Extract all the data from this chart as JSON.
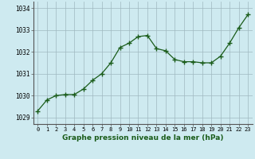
{
  "x": [
    0,
    1,
    2,
    3,
    4,
    5,
    6,
    7,
    8,
    9,
    10,
    11,
    12,
    13,
    14,
    15,
    16,
    17,
    18,
    19,
    20,
    21,
    22,
    23
  ],
  "y": [
    1029.3,
    1029.8,
    1030.0,
    1030.05,
    1030.05,
    1030.3,
    1030.7,
    1031.0,
    1031.5,
    1032.2,
    1032.4,
    1032.7,
    1032.75,
    1032.15,
    1032.05,
    1031.65,
    1031.55,
    1031.55,
    1031.5,
    1031.5,
    1031.8,
    1032.4,
    1033.1,
    1033.7
  ],
  "line_color": "#1a5c1a",
  "marker": "+",
  "markersize": 4,
  "linewidth": 0.9,
  "bg_color": "#ceeaf0",
  "grid_color": "#a0b8c0",
  "xlabel": "Graphe pression niveau de la mer (hPa)",
  "xlabel_fontsize": 6.5,
  "ytick_labels": [
    "1029",
    "1030",
    "1031",
    "1032",
    "1033",
    "1034"
  ],
  "ytick_values": [
    1029,
    1030,
    1031,
    1032,
    1033,
    1034
  ],
  "ylim": [
    1028.7,
    1034.3
  ],
  "xlim": [
    -0.5,
    23.5
  ],
  "xtick_labels": [
    "0",
    "1",
    "2",
    "3",
    "4",
    "5",
    "6",
    "7",
    "8",
    "9",
    "10",
    "11",
    "12",
    "13",
    "14",
    "15",
    "16",
    "17",
    "18",
    "19",
    "20",
    "21",
    "22",
    "23"
  ],
  "tick_fontsize": 5.0,
  "ytick_fontsize": 5.5
}
